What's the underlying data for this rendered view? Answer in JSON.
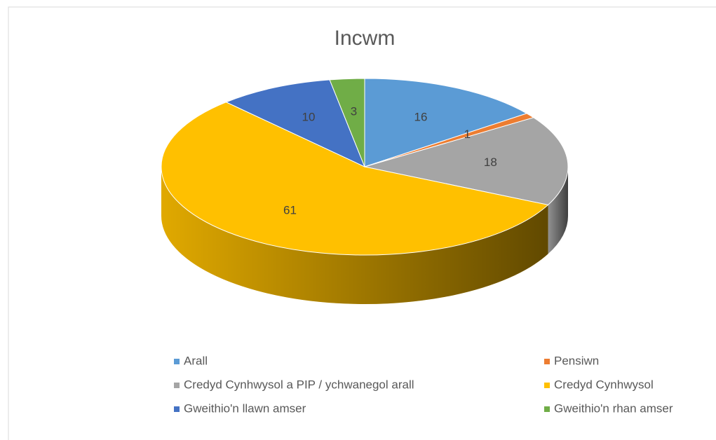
{
  "chart_data": {
    "type": "pie",
    "title": "Incwm",
    "categories": [
      "Arall",
      "Pensiwn",
      "Credyd Cynhwysol a PIP / ychwanegol arall",
      "Credyd Cynhwysol",
      "Gweithio'n llawn amser",
      "Gweithio'n rhan amser"
    ],
    "values": [
      16,
      1,
      18,
      61,
      10,
      3
    ],
    "colors": [
      "#5b9bd5",
      "#ed7d31",
      "#a5a5a5",
      "#ffc000",
      "#4472c4",
      "#70ad47"
    ],
    "legend": "bottom"
  }
}
